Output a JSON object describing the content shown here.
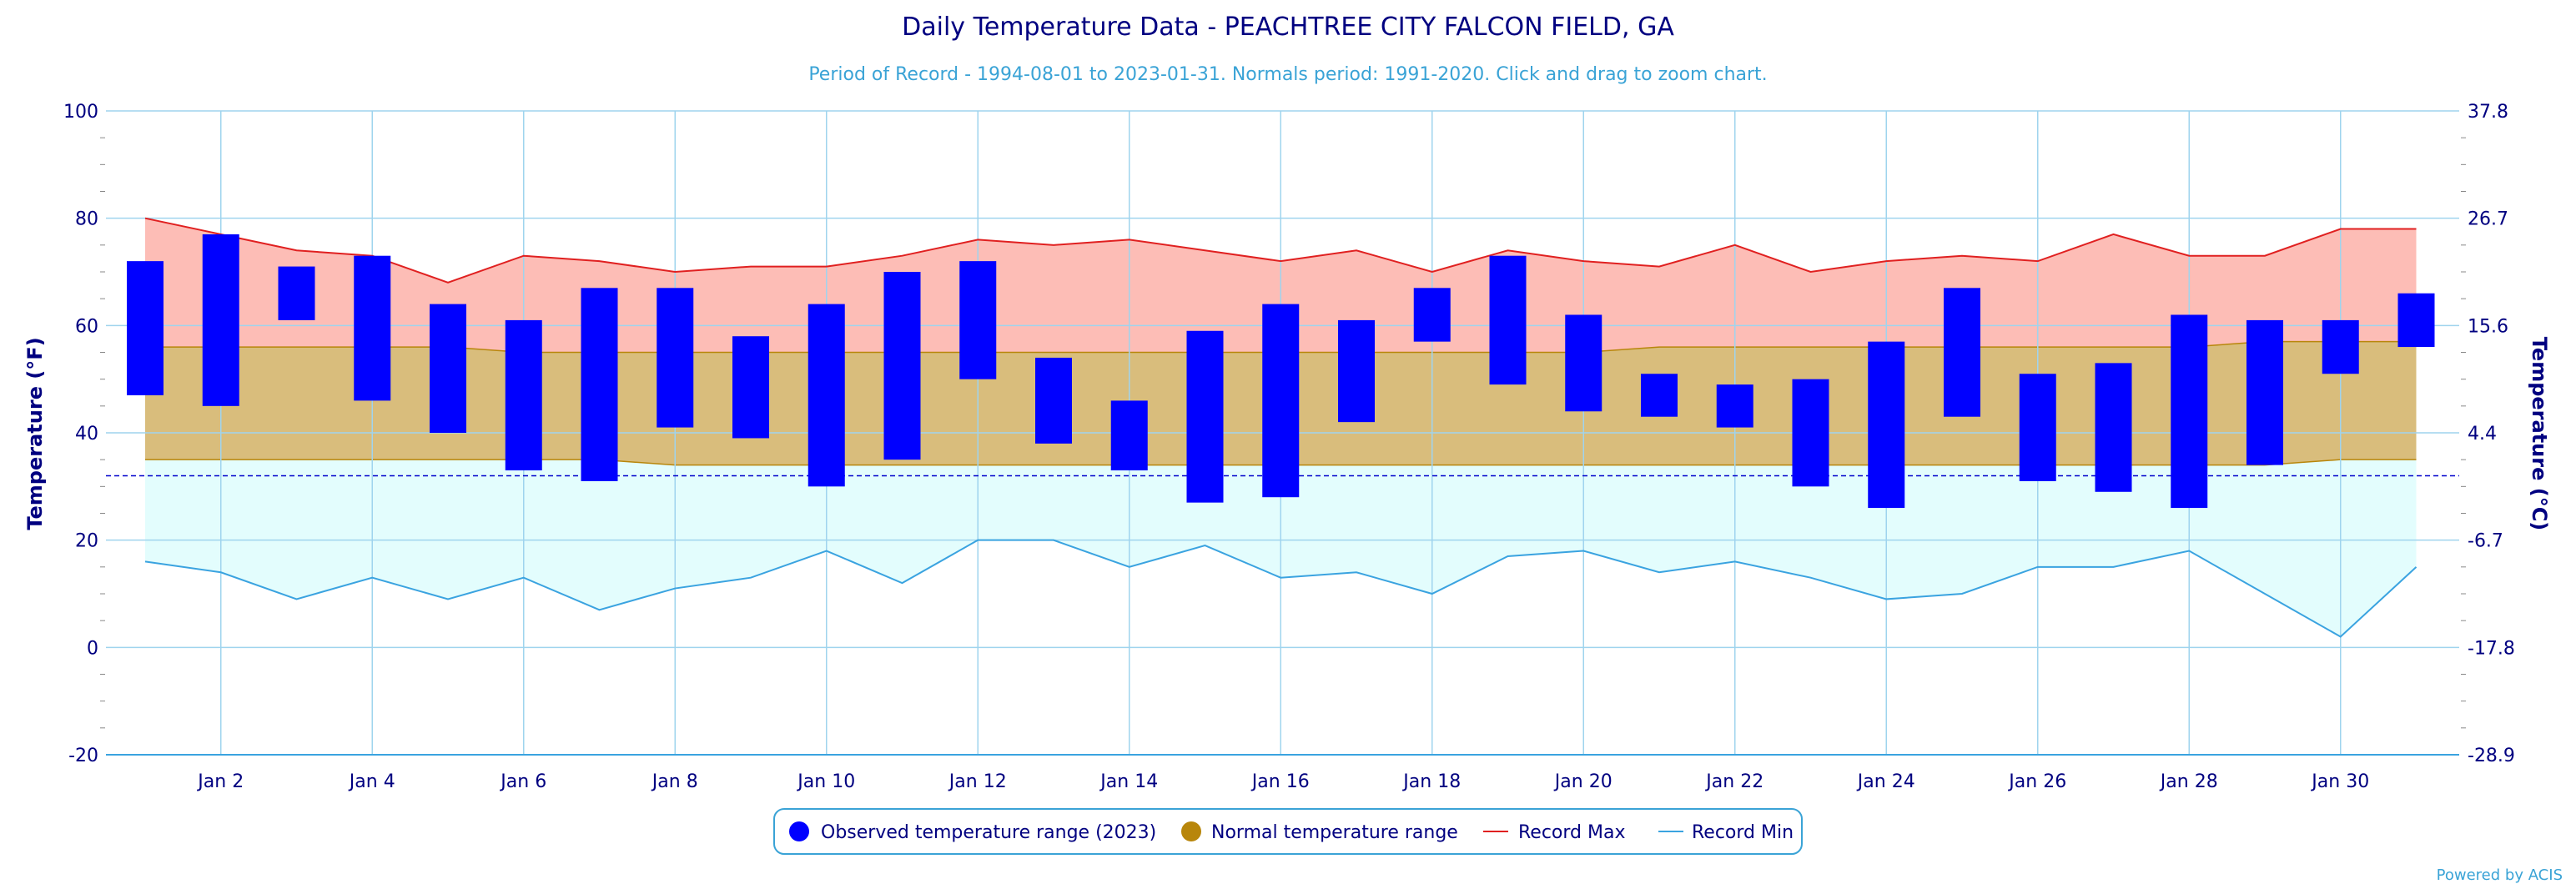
{
  "chart_data": {
    "type": "bar",
    "title": "Daily Temperature Data - PEACHTREE CITY FALCON FIELD, GA",
    "subtitle": "Period of Record - 1994-08-01 to 2023-01-31. Normals period: 1991-2020. Click and drag to zoom chart.",
    "ylabel": "Temperature (°F)",
    "ylabel_right": "Temperature (°C)",
    "ylim": [
      -20,
      100
    ],
    "yticks": [
      -20,
      0,
      20,
      40,
      60,
      80,
      100
    ],
    "yticks_right": [
      "-28.9",
      "-17.8",
      "-6.7",
      "4.4",
      "15.6",
      "26.7",
      "37.8"
    ],
    "xticks": [
      "Jan 2",
      "Jan 4",
      "Jan 6",
      "Jan 8",
      "Jan 10",
      "Jan 12",
      "Jan 14",
      "Jan 16",
      "Jan 18",
      "Jan 20",
      "Jan 22",
      "Jan 24",
      "Jan 26",
      "Jan 28",
      "Jan 30"
    ],
    "xtick_days": [
      2,
      4,
      6,
      8,
      10,
      12,
      14,
      16,
      18,
      20,
      22,
      24,
      26,
      28,
      30
    ],
    "days": [
      1,
      2,
      3,
      4,
      5,
      6,
      7,
      8,
      9,
      10,
      11,
      12,
      13,
      14,
      15,
      16,
      17,
      18,
      19,
      20,
      21,
      22,
      23,
      24,
      25,
      26,
      27,
      28,
      29,
      30,
      31
    ],
    "freezing_line": 32,
    "grid": true,
    "legend_position": "bottom",
    "series": [
      {
        "name": "Observed temperature range (2023)",
        "color": "#0000ff",
        "low": [
          47,
          45,
          61,
          46,
          40,
          33,
          31,
          41,
          39,
          30,
          35,
          50,
          38,
          33,
          27,
          28,
          42,
          57,
          49,
          44,
          43,
          41,
          30,
          26,
          43,
          31,
          29,
          26,
          34,
          51,
          56
        ],
        "high": [
          72,
          77,
          71,
          73,
          64,
          61,
          67,
          67,
          58,
          64,
          70,
          72,
          54,
          46,
          59,
          64,
          61,
          67,
          73,
          62,
          51,
          49,
          50,
          57,
          67,
          51,
          53,
          62,
          61,
          61,
          66
        ]
      },
      {
        "name": "Normal temperature range",
        "color": "#b8860b",
        "low": [
          35,
          35,
          35,
          35,
          35,
          35,
          35,
          34,
          34,
          34,
          34,
          34,
          34,
          34,
          34,
          34,
          34,
          34,
          34,
          34,
          34,
          34,
          34,
          34,
          34,
          34,
          34,
          34,
          34,
          35,
          35
        ],
        "high": [
          56,
          56,
          56,
          56,
          56,
          55,
          55,
          55,
          55,
          55,
          55,
          55,
          55,
          55,
          55,
          55,
          55,
          55,
          55,
          55,
          56,
          56,
          56,
          56,
          56,
          56,
          56,
          56,
          57,
          57,
          57
        ]
      },
      {
        "name": "Record Max",
        "color": "#e02020",
        "values": [
          80,
          77,
          74,
          73,
          68,
          73,
          72,
          70,
          71,
          71,
          73,
          76,
          75,
          76,
          74,
          72,
          74,
          70,
          74,
          72,
          71,
          75,
          70,
          72,
          73,
          72,
          77,
          73,
          73,
          78,
          78
        ]
      },
      {
        "name": "Record Min",
        "color": "#3aa3e0",
        "values": [
          16,
          14,
          9,
          13,
          9,
          13,
          7,
          11,
          13,
          18,
          12,
          20,
          20,
          15,
          19,
          13,
          14,
          10,
          17,
          18,
          14,
          16,
          13,
          9,
          10,
          15,
          15,
          18,
          10,
          2,
          15
        ]
      }
    ]
  },
  "credit": "Powered by ACIS"
}
